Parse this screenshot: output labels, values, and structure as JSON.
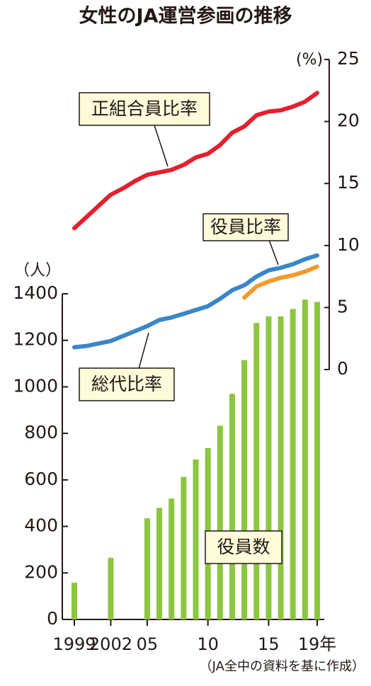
{
  "chart_data": {
    "type": "bar_line",
    "title": "女性のJA運営参画の推移",
    "y_label": "（人）",
    "y2_label": "(%)",
    "source": "（JA全中の資料を基に作成）",
    "x": [
      1999,
      2000,
      2001,
      2002,
      2003,
      2004,
      2005,
      2006,
      2007,
      2008,
      2009,
      2010,
      2011,
      2012,
      2013,
      2014,
      2015,
      2016,
      2017,
      2018,
      2019
    ],
    "xlim": [
      1999,
      2019
    ],
    "xticks": [
      1999,
      2002,
      {
        "value": 2005,
        "label": "05"
      },
      {
        "value": 2010,
        "label": "10"
      },
      {
        "value": 2015,
        "label": "15"
      },
      {
        "value": 2019,
        "label": "19年"
      }
    ],
    "ylim": [
      0,
      1400
    ],
    "yticks": [
      0,
      200,
      400,
      600,
      800,
      1000,
      1200,
      1400
    ],
    "y2lim": [
      0,
      25
    ],
    "y2ticks": [
      0,
      5,
      10,
      15,
      20,
      25
    ],
    "series": [
      {
        "name": "役員数",
        "type": "bar",
        "color": "#8cc63f",
        "values": [
          158,
          null,
          null,
          265,
          null,
          null,
          435,
          480,
          520,
          613,
          688,
          737,
          833,
          970,
          1115,
          1275,
          1303,
          1303,
          1335,
          1375,
          1365
        ]
      },
      {
        "name": "正組合員比率",
        "type": "line",
        "axis": "y2",
        "color": "#e5202e",
        "values": [
          11.4,
          12.3,
          13.2,
          14.1,
          14.6,
          15.2,
          15.7,
          15.9,
          16.1,
          16.5,
          17.1,
          17.4,
          18.1,
          19.1,
          19.6,
          20.5,
          20.8,
          20.9,
          21.2,
          21.6,
          22.3
        ]
      },
      {
        "name": "総代比率",
        "type": "line",
        "axis": "y2",
        "color": "#3a86c8",
        "values": [
          1.8,
          1.9,
          2.1,
          2.3,
          2.7,
          3.1,
          3.5,
          4.0,
          4.2,
          4.5,
          4.8,
          5.1,
          5.7,
          6.4,
          6.8,
          7.5,
          8.0,
          8.2,
          8.5,
          8.9,
          9.2
        ]
      },
      {
        "name": "役員比率",
        "type": "line",
        "axis": "y2",
        "color": "#f39a2b",
        "values": [
          null,
          null,
          null,
          null,
          null,
          null,
          null,
          null,
          null,
          null,
          null,
          null,
          null,
          null,
          5.8,
          6.7,
          7.1,
          7.4,
          7.6,
          7.9,
          8.3
        ]
      }
    ]
  }
}
